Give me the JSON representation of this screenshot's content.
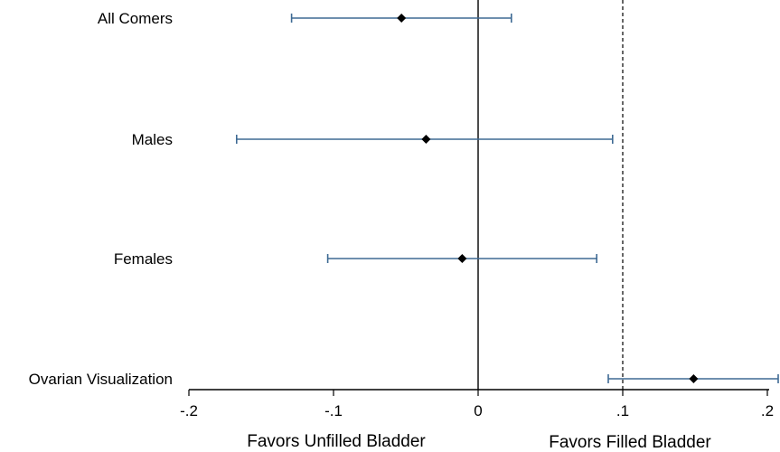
{
  "chart_data": {
    "type": "forest",
    "x_axis": {
      "range": [
        -0.2,
        0.2
      ],
      "ticks": [
        -0.2,
        -0.1,
        0,
        0.1,
        0.2
      ],
      "tick_labels": [
        "-.2",
        "-.1",
        "0",
        ".1",
        ".2"
      ]
    },
    "reference_lines": [
      {
        "x": 0,
        "style": "solid"
      },
      {
        "x": 0.1,
        "style": "dashed"
      }
    ],
    "annotations": {
      "left": "Favors Unfilled Bladder",
      "right": "Favors Filled Bladder"
    },
    "rows": [
      {
        "label": "All Comers",
        "estimate": -0.053,
        "lower": -0.129,
        "upper": 0.023
      },
      {
        "label": "Males",
        "estimate": -0.036,
        "lower": -0.167,
        "upper": 0.093
      },
      {
        "label": "Females",
        "estimate": -0.011,
        "lower": -0.104,
        "upper": 0.082
      },
      {
        "label": "Ovarian Visualization",
        "estimate": 0.149,
        "lower": 0.09,
        "upper": 0.208
      }
    ],
    "colors": {
      "ci": "#3e6a94",
      "marker": "#000000",
      "axis": "#000000"
    }
  }
}
